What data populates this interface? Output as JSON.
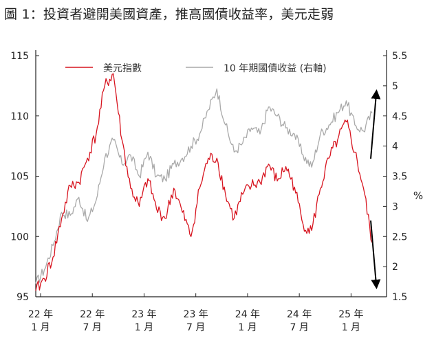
{
  "title": "圖 1：投資者避開美國資產，推高國債收益率，美元走弱",
  "chart_data": {
    "type": "line",
    "x_ticks": [
      {
        "year": "22 年",
        "month": "1 月",
        "date": "2022-01"
      },
      {
        "year": "22 年",
        "month": "7 月",
        "date": "2022-07"
      },
      {
        "year": "23 年",
        "month": "1 月",
        "date": "2023-01"
      },
      {
        "year": "23 年",
        "month": "7 月",
        "date": "2023-07"
      },
      {
        "year": "24 年",
        "month": "1 月",
        "date": "2024-01"
      },
      {
        "year": "24 年",
        "month": "7 月",
        "date": "2024-07"
      },
      {
        "year": "25 年",
        "month": "1 月",
        "date": "2025-01"
      }
    ],
    "x_range": [
      "2022-01",
      "2025-04"
    ],
    "y_left": {
      "min": 95,
      "max": 115,
      "ticks": [
        "95",
        "100",
        "105",
        "110",
        "115"
      ]
    },
    "y_right": {
      "min": 1.5,
      "max": 5.5,
      "ticks": [
        "1.5",
        "2",
        "2.5",
        "3",
        "3.5",
        "4",
        "4.5",
        "5",
        "5.5"
      ],
      "unit": "%"
    },
    "legend_position": "top-center",
    "series": [
      {
        "name": "美元指數",
        "axis": "left",
        "color": "#d7141f",
        "points": [
          [
            "2022-01",
            95.5
          ],
          [
            "2022-02",
            96.5
          ],
          [
            "2022-03",
            98.3
          ],
          [
            "2022-04",
            101.5
          ],
          [
            "2022-05",
            104.2
          ],
          [
            "2022-06",
            104.5
          ],
          [
            "2022-07",
            106.5
          ],
          [
            "2022-08",
            108.5
          ],
          [
            "2022-09",
            112.5
          ],
          [
            "2022-10",
            113.5
          ],
          [
            "2022-11",
            108.0
          ],
          [
            "2022-12",
            104.0
          ],
          [
            "2023-01",
            102.5
          ],
          [
            "2023-02",
            104.8
          ],
          [
            "2023-03",
            102.3
          ],
          [
            "2023-04",
            101.5
          ],
          [
            "2023-05",
            104.0
          ],
          [
            "2023-06",
            102.0
          ],
          [
            "2023-07",
            100.0
          ],
          [
            "2023-08",
            104.0
          ],
          [
            "2023-09",
            106.5
          ],
          [
            "2023-10",
            106.5
          ],
          [
            "2023-11",
            103.5
          ],
          [
            "2023-12",
            101.5
          ],
          [
            "2024-01",
            103.5
          ],
          [
            "2024-02",
            104.2
          ],
          [
            "2024-03",
            104.5
          ],
          [
            "2024-04",
            106.0
          ],
          [
            "2024-05",
            104.6
          ],
          [
            "2024-06",
            105.8
          ],
          [
            "2024-07",
            104.1
          ],
          [
            "2024-08",
            101.0
          ],
          [
            "2024-09",
            100.5
          ],
          [
            "2024-10",
            104.0
          ],
          [
            "2024-11",
            106.5
          ],
          [
            "2024-12",
            108.0
          ],
          [
            "2025-01",
            109.5
          ],
          [
            "2025-02",
            107.0
          ],
          [
            "2025-03",
            104.0
          ],
          [
            "2025-04",
            99.5
          ]
        ]
      },
      {
        "name": "10 年期國債收益 (右軸)",
        "axis": "right",
        "color": "#a9a9a9",
        "points": [
          [
            "2022-01",
            1.72
          ],
          [
            "2022-02",
            1.95
          ],
          [
            "2022-03",
            2.35
          ],
          [
            "2022-04",
            2.9
          ],
          [
            "2022-05",
            2.85
          ],
          [
            "2022-06",
            3.15
          ],
          [
            "2022-07",
            2.75
          ],
          [
            "2022-08",
            3.1
          ],
          [
            "2022-09",
            3.8
          ],
          [
            "2022-10",
            4.1
          ],
          [
            "2022-11",
            3.7
          ],
          [
            "2022-12",
            3.85
          ],
          [
            "2023-01",
            3.5
          ],
          [
            "2023-02",
            3.9
          ],
          [
            "2023-03",
            3.5
          ],
          [
            "2023-04",
            3.45
          ],
          [
            "2023-05",
            3.7
          ],
          [
            "2023-06",
            3.8
          ],
          [
            "2023-07",
            4.0
          ],
          [
            "2023-08",
            4.2
          ],
          [
            "2023-09",
            4.6
          ],
          [
            "2023-10",
            4.95
          ],
          [
            "2023-11",
            4.35
          ],
          [
            "2023-12",
            3.9
          ],
          [
            "2024-01",
            4.05
          ],
          [
            "2024-02",
            4.3
          ],
          [
            "2024-03",
            4.2
          ],
          [
            "2024-04",
            4.65
          ],
          [
            "2024-05",
            4.5
          ],
          [
            "2024-06",
            4.3
          ],
          [
            "2024-07",
            4.2
          ],
          [
            "2024-08",
            3.85
          ],
          [
            "2024-09",
            3.65
          ],
          [
            "2024-10",
            4.2
          ],
          [
            "2024-11",
            4.35
          ],
          [
            "2024-12",
            4.55
          ],
          [
            "2025-01",
            4.75
          ],
          [
            "2025-02",
            4.35
          ],
          [
            "2025-03",
            4.25
          ],
          [
            "2025-04",
            4.55
          ]
        ]
      }
    ],
    "annotations": [
      {
        "kind": "arrow",
        "direction": "up",
        "series": "10 年期國債收益 (右軸)"
      },
      {
        "kind": "arrow",
        "direction": "down",
        "series": "美元指數"
      }
    ]
  }
}
